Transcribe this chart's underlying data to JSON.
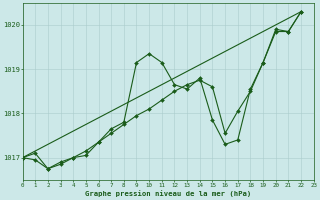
{
  "bg_color": "#cce8e8",
  "grid_color": "#aacccc",
  "line_color": "#1a5c1a",
  "marker_color": "#1a5c1a",
  "title": "Graphe pression niveau de la mer (hPa)",
  "title_color": "#1a5c1a",
  "xlim": [
    0,
    23
  ],
  "ylim": [
    1016.5,
    1020.5
  ],
  "yticks": [
    1017,
    1018,
    1019,
    1020
  ],
  "xticks": [
    0,
    1,
    2,
    3,
    4,
    5,
    6,
    7,
    8,
    9,
    10,
    11,
    12,
    13,
    14,
    15,
    16,
    17,
    18,
    19,
    20,
    21,
    22,
    23
  ],
  "series1": [
    [
      0,
      1017.0
    ],
    [
      1,
      1017.1
    ],
    [
      2,
      1016.75
    ],
    [
      3,
      1016.85
    ],
    [
      4,
      1017.0
    ],
    [
      5,
      1017.05
    ],
    [
      6,
      1017.35
    ],
    [
      7,
      1017.65
    ],
    [
      8,
      1017.8
    ],
    [
      9,
      1019.15
    ],
    [
      10,
      1019.35
    ],
    [
      11,
      1019.15
    ],
    [
      12,
      1018.65
    ],
    [
      13,
      1018.55
    ],
    [
      14,
      1018.8
    ],
    [
      15,
      1017.85
    ],
    [
      16,
      1017.3
    ],
    [
      17,
      1017.4
    ],
    [
      18,
      1018.55
    ],
    [
      19,
      1019.15
    ],
    [
      20,
      1019.9
    ],
    [
      21,
      1019.85
    ],
    [
      22,
      1020.3
    ]
  ],
  "series2": [
    [
      0,
      1017.0
    ],
    [
      1,
      1016.95
    ],
    [
      2,
      1016.75
    ],
    [
      3,
      1016.9
    ],
    [
      4,
      1017.0
    ],
    [
      5,
      1017.15
    ],
    [
      6,
      1017.35
    ],
    [
      7,
      1017.55
    ],
    [
      8,
      1017.75
    ],
    [
      9,
      1017.95
    ],
    [
      10,
      1018.1
    ],
    [
      11,
      1018.3
    ],
    [
      12,
      1018.5
    ],
    [
      13,
      1018.65
    ],
    [
      14,
      1018.75
    ],
    [
      15,
      1018.6
    ],
    [
      16,
      1017.55
    ],
    [
      17,
      1018.05
    ],
    [
      18,
      1018.5
    ],
    [
      19,
      1019.15
    ],
    [
      20,
      1019.85
    ],
    [
      21,
      1019.85
    ],
    [
      22,
      1020.3
    ]
  ],
  "series3": [
    [
      0,
      1017.0
    ],
    [
      22,
      1020.3
    ]
  ]
}
